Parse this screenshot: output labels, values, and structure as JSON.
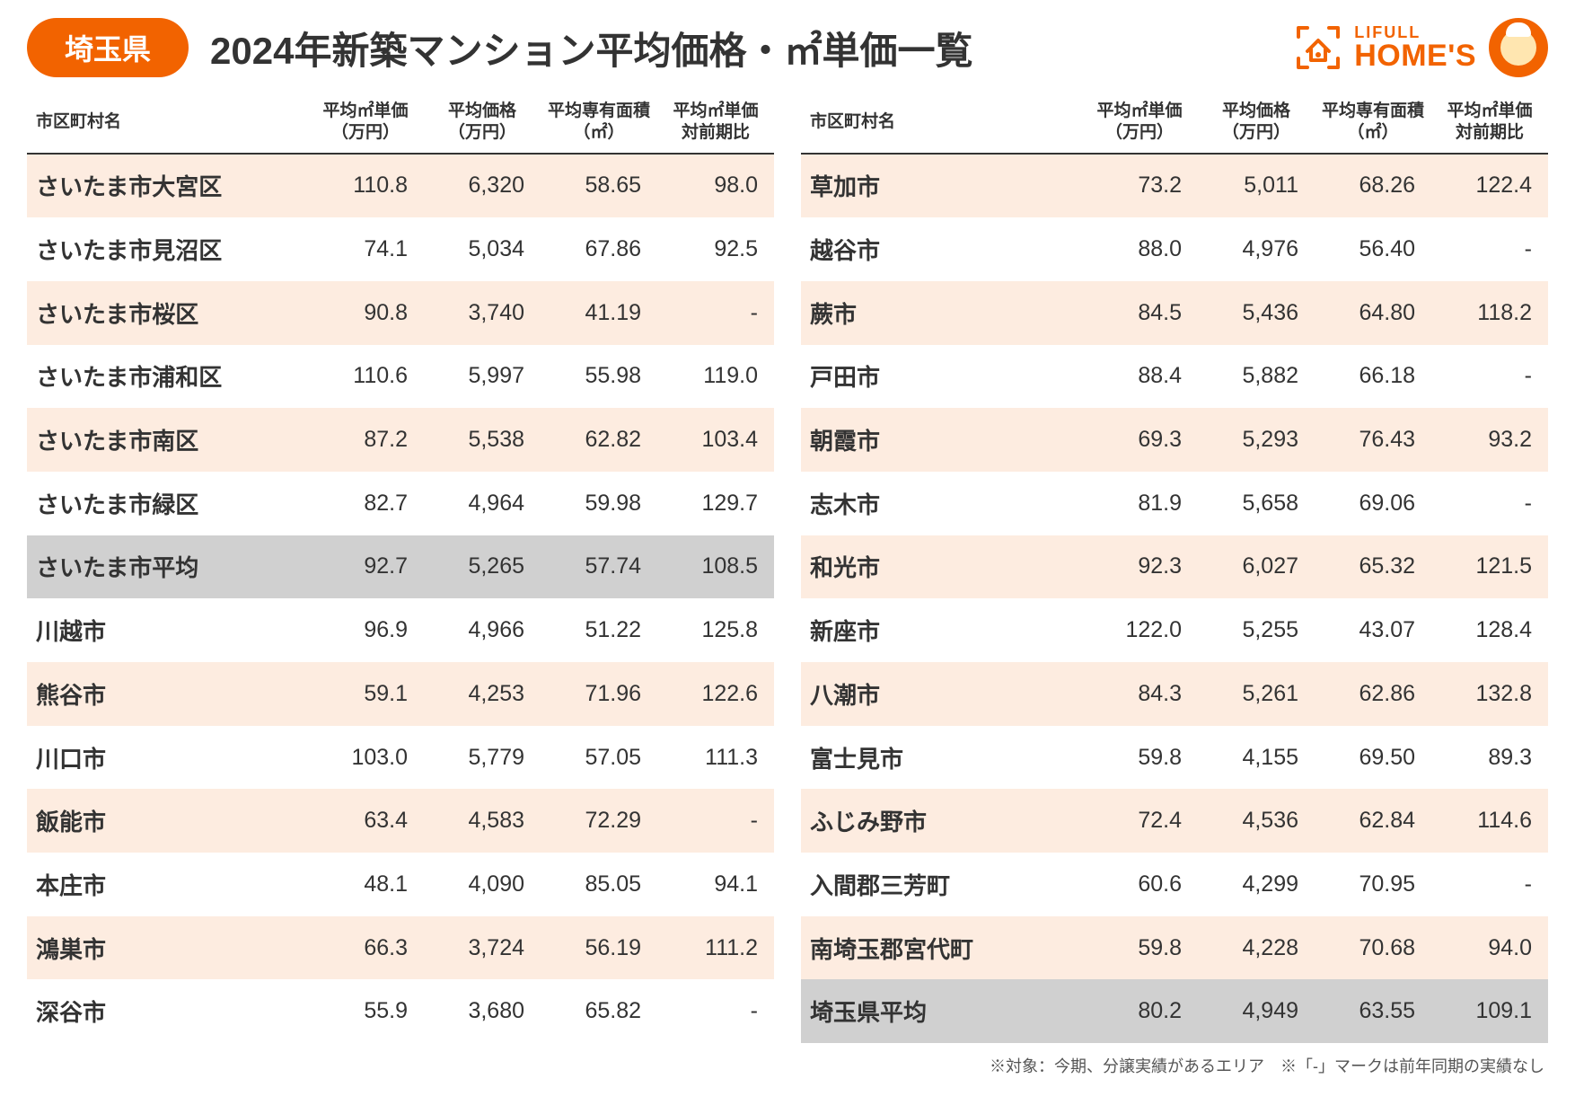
{
  "header": {
    "badge": "埼玉県",
    "title": "2024年新築マンション平均価格・㎡単価一覧",
    "logo_lifull": "LIFULL",
    "logo_homes": "HOME'S"
  },
  "colors": {
    "accent": "#f26300",
    "stripe": "#fdece0",
    "summary_bg": "#d0d0d0",
    "text": "#333333",
    "background": "#ffffff",
    "header_rule": "#333333"
  },
  "columns": {
    "c1": "市区町村名",
    "c2": "平均㎡単価\n（万円）",
    "c3": "平均価格\n（万円）",
    "c4": "平均専有面積\n（㎡）",
    "c5": "平均㎡単価\n対前期比"
  },
  "left": [
    {
      "name": "さいたま市大宮区",
      "m2": "110.8",
      "price": "6,320",
      "area": "58.65",
      "yoy": "98.0",
      "summary": false
    },
    {
      "name": "さいたま市見沼区",
      "m2": "74.1",
      "price": "5,034",
      "area": "67.86",
      "yoy": "92.5",
      "summary": false
    },
    {
      "name": "さいたま市桜区",
      "m2": "90.8",
      "price": "3,740",
      "area": "41.19",
      "yoy": "-",
      "summary": false
    },
    {
      "name": "さいたま市浦和区",
      "m2": "110.6",
      "price": "5,997",
      "area": "55.98",
      "yoy": "119.0",
      "summary": false
    },
    {
      "name": "さいたま市南区",
      "m2": "87.2",
      "price": "5,538",
      "area": "62.82",
      "yoy": "103.4",
      "summary": false
    },
    {
      "name": "さいたま市緑区",
      "m2": "82.7",
      "price": "4,964",
      "area": "59.98",
      "yoy": "129.7",
      "summary": false
    },
    {
      "name": "さいたま市平均",
      "m2": "92.7",
      "price": "5,265",
      "area": "57.74",
      "yoy": "108.5",
      "summary": true
    },
    {
      "name": "川越市",
      "m2": "96.9",
      "price": "4,966",
      "area": "51.22",
      "yoy": "125.8",
      "summary": false
    },
    {
      "name": "熊谷市",
      "m2": "59.1",
      "price": "4,253",
      "area": "71.96",
      "yoy": "122.6",
      "summary": false
    },
    {
      "name": "川口市",
      "m2": "103.0",
      "price": "5,779",
      "area": "57.05",
      "yoy": "111.3",
      "summary": false
    },
    {
      "name": "飯能市",
      "m2": "63.4",
      "price": "4,583",
      "area": "72.29",
      "yoy": "-",
      "summary": false
    },
    {
      "name": "本庄市",
      "m2": "48.1",
      "price": "4,090",
      "area": "85.05",
      "yoy": "94.1",
      "summary": false
    },
    {
      "name": "鴻巣市",
      "m2": "66.3",
      "price": "3,724",
      "area": "56.19",
      "yoy": "111.2",
      "summary": false
    },
    {
      "name": "深谷市",
      "m2": "55.9",
      "price": "3,680",
      "area": "65.82",
      "yoy": "-",
      "summary": false
    }
  ],
  "right": [
    {
      "name": "草加市",
      "m2": "73.2",
      "price": "5,011",
      "area": "68.26",
      "yoy": "122.4",
      "summary": false
    },
    {
      "name": "越谷市",
      "m2": "88.0",
      "price": "4,976",
      "area": "56.40",
      "yoy": "-",
      "summary": false
    },
    {
      "name": "蕨市",
      "m2": "84.5",
      "price": "5,436",
      "area": "64.80",
      "yoy": "118.2",
      "summary": false
    },
    {
      "name": "戸田市",
      "m2": "88.4",
      "price": "5,882",
      "area": "66.18",
      "yoy": "-",
      "summary": false
    },
    {
      "name": "朝霞市",
      "m2": "69.3",
      "price": "5,293",
      "area": "76.43",
      "yoy": "93.2",
      "summary": false
    },
    {
      "name": "志木市",
      "m2": "81.9",
      "price": "5,658",
      "area": "69.06",
      "yoy": "-",
      "summary": false
    },
    {
      "name": "和光市",
      "m2": "92.3",
      "price": "6,027",
      "area": "65.32",
      "yoy": "121.5",
      "summary": false
    },
    {
      "name": "新座市",
      "m2": "122.0",
      "price": "5,255",
      "area": "43.07",
      "yoy": "128.4",
      "summary": false
    },
    {
      "name": "八潮市",
      "m2": "84.3",
      "price": "5,261",
      "area": "62.86",
      "yoy": "132.8",
      "summary": false
    },
    {
      "name": "富士見市",
      "m2": "59.8",
      "price": "4,155",
      "area": "69.50",
      "yoy": "89.3",
      "summary": false
    },
    {
      "name": "ふじみ野市",
      "m2": "72.4",
      "price": "4,536",
      "area": "62.84",
      "yoy": "114.6",
      "summary": false
    },
    {
      "name": "入間郡三芳町",
      "m2": "60.6",
      "price": "4,299",
      "area": "70.95",
      "yoy": "-",
      "summary": false
    },
    {
      "name": "南埼玉郡宮代町",
      "m2": "59.8",
      "price": "4,228",
      "area": "70.68",
      "yoy": "94.0",
      "summary": false
    },
    {
      "name": "埼玉県平均",
      "m2": "80.2",
      "price": "4,949",
      "area": "63.55",
      "yoy": "109.1",
      "summary": true
    }
  ],
  "footnote": "※対象：今期、分譲実績があるエリア　※「-」マークは前年同期の実績なし"
}
